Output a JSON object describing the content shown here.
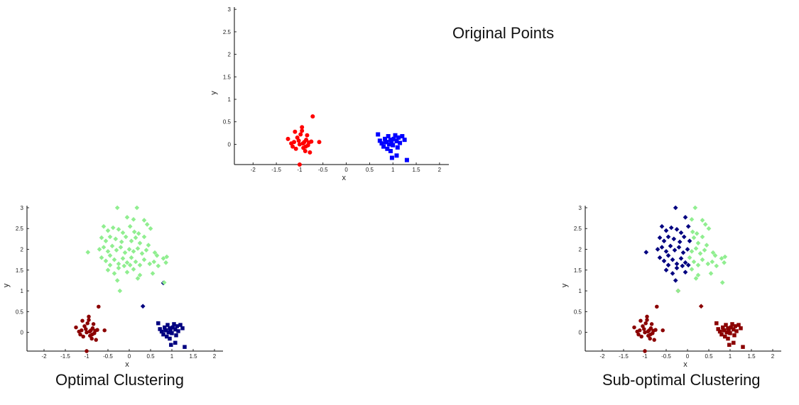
{
  "captions": {
    "top": "Original Points",
    "left": "Optimal Clustering",
    "right": "Sub-optimal Clustering"
  },
  "colors": {
    "red": "#ff0000",
    "blue": "#0000ff",
    "green": "#00ee00",
    "dark_red": "#8b0000",
    "navy": "#000080",
    "light_green": "#90ee90"
  },
  "chart_data": [
    {
      "type": "scatter",
      "title": "Original Points",
      "xlabel": "x",
      "ylabel": "y",
      "xlim": [
        -2.4,
        2.2
      ],
      "ylim": [
        -0.45,
        3.05
      ],
      "xticks": [
        "-2",
        "-1.5",
        "-1",
        "-0.5",
        "0",
        "0.5",
        "1",
        "1.5",
        "2"
      ],
      "yticks": [
        "0",
        "0.5",
        "1",
        "1.5",
        "2",
        "2.5",
        "3"
      ],
      "grid": false,
      "groups": [
        {
          "color": "red",
          "marker": "circle",
          "points": "A"
        },
        {
          "color": "blue",
          "marker": "square",
          "points": "B"
        },
        {
          "color": "green",
          "marker": "diamond",
          "points": "C"
        }
      ]
    },
    {
      "type": "scatter",
      "title": "Optimal Clustering",
      "xlabel": "x",
      "ylabel": "y",
      "xlim": [
        -2.4,
        2.2
      ],
      "ylim": [
        -0.45,
        3.05
      ],
      "xticks": [
        "-2",
        "-1.5",
        "-1",
        "-0.5",
        "0",
        "0.5",
        "1",
        "1.5",
        "2"
      ],
      "yticks": [
        "0",
        "0.5",
        "1",
        "1.5",
        "2",
        "2.5",
        "3"
      ],
      "grid": false,
      "groups": [
        {
          "color": "dark_red",
          "marker": "circle",
          "points": "A"
        },
        {
          "color": "navy",
          "marker": "square",
          "points": "B"
        },
        {
          "color": "navy",
          "marker": "diamond",
          "points": "C_outliers"
        },
        {
          "color": "light_green",
          "marker": "diamond",
          "points": "C_main"
        }
      ]
    },
    {
      "type": "scatter",
      "title": "Sub-optimal Clustering",
      "xlabel": "x",
      "ylabel": "y",
      "xlim": [
        -2.4,
        2.2
      ],
      "ylim": [
        -0.45,
        3.05
      ],
      "xticks": [
        "-2",
        "-1.5",
        "-1",
        "-0.5",
        "0",
        "0.5",
        "1",
        "1.5",
        "2"
      ],
      "yticks": [
        "0",
        "0.5",
        "1",
        "1.5",
        "2",
        "2.5",
        "3"
      ],
      "grid": false,
      "groups": [
        {
          "color": "dark_red",
          "marker": "circle",
          "points": "A"
        },
        {
          "color": "dark_red",
          "marker": "square",
          "points": "B"
        },
        {
          "color": "dark_red",
          "marker": "diamond",
          "points": "C_outliers"
        },
        {
          "color": "navy",
          "marker": "diamond",
          "points": "C_left"
        },
        {
          "color": "light_green",
          "marker": "diamond",
          "points": "C_right"
        }
      ]
    }
  ],
  "points": {
    "A": [
      [
        -1.25,
        0.12
      ],
      [
        -1.18,
        0.02
      ],
      [
        -1.15,
        -0.05
      ],
      [
        -1.12,
        0.05
      ],
      [
        -1.08,
        -0.1
      ],
      [
        -1.05,
        0.15
      ],
      [
        -1.02,
        0.08
      ],
      [
        -0.98,
        0.22
      ],
      [
        -0.95,
        0.3
      ],
      [
        -0.92,
        -0.08
      ],
      [
        -0.9,
        0.05
      ],
      [
        -0.88,
        -0.15
      ],
      [
        -0.86,
        0.1
      ],
      [
        -0.84,
        0.2
      ],
      [
        -0.82,
        -0.02
      ],
      [
        -0.8,
        0.04
      ],
      [
        -0.78,
        -0.18
      ],
      [
        -0.75,
        0.06
      ],
      [
        -1.1,
        0.28
      ],
      [
        -0.95,
        0.38
      ],
      [
        -1.0,
        0.0
      ],
      [
        -0.87,
        -0.05
      ],
      [
        -0.72,
        0.62
      ],
      [
        -0.58,
        0.05
      ],
      [
        -1.0,
        -0.45
      ],
      [
        -0.93,
        0.02
      ]
    ],
    "B": [
      [
        0.68,
        0.22
      ],
      [
        0.72,
        0.08
      ],
      [
        0.76,
        0.02
      ],
      [
        0.8,
        -0.05
      ],
      [
        0.83,
        0.12
      ],
      [
        0.86,
        0.05
      ],
      [
        0.88,
        -0.1
      ],
      [
        0.9,
        0.18
      ],
      [
        0.92,
        0.0
      ],
      [
        0.95,
        0.1
      ],
      [
        0.97,
        0.04
      ],
      [
        1.0,
        -0.02
      ],
      [
        1.02,
        0.12
      ],
      [
        1.05,
        0.2
      ],
      [
        1.08,
        0.07
      ],
      [
        1.1,
        -0.07
      ],
      [
        1.12,
        0.15
      ],
      [
        1.15,
        0.03
      ],
      [
        1.2,
        0.18
      ],
      [
        1.25,
        0.1
      ],
      [
        0.98,
        -0.3
      ],
      [
        1.08,
        -0.25
      ],
      [
        1.3,
        -0.35
      ],
      [
        0.85,
        0.05
      ],
      [
        0.95,
        -0.15
      ]
    ],
    "C_outliers": [
      [
        0.32,
        0.63
      ],
      [
        0.8,
        1.19
      ]
    ],
    "C_main": [
      [
        -0.28,
        3.0
      ],
      [
        0.18,
        3.0
      ],
      [
        -0.05,
        2.77
      ],
      [
        0.1,
        2.72
      ],
      [
        0.35,
        2.7
      ],
      [
        -0.6,
        2.55
      ],
      [
        -0.5,
        2.45
      ],
      [
        -0.38,
        2.52
      ],
      [
        -0.25,
        2.48
      ],
      [
        -0.15,
        2.4
      ],
      [
        0.02,
        2.55
      ],
      [
        0.12,
        2.42
      ],
      [
        0.22,
        2.38
      ],
      [
        0.42,
        2.6
      ],
      [
        0.5,
        2.5
      ],
      [
        -0.65,
        2.28
      ],
      [
        -0.55,
        2.2
      ],
      [
        -0.45,
        2.3
      ],
      [
        -0.32,
        2.25
      ],
      [
        -0.18,
        2.18
      ],
      [
        -0.08,
        2.3
      ],
      [
        0.05,
        2.2
      ],
      [
        0.15,
        2.28
      ],
      [
        0.25,
        2.15
      ],
      [
        0.35,
        2.3
      ],
      [
        0.45,
        2.1
      ],
      [
        -0.7,
        2.0
      ],
      [
        -0.6,
        2.05
      ],
      [
        -0.5,
        1.95
      ],
      [
        -0.4,
        2.08
      ],
      [
        -0.3,
        1.98
      ],
      [
        -0.2,
        2.05
      ],
      [
        -0.1,
        1.92
      ],
      [
        0.0,
        2.0
      ],
      [
        0.1,
        1.95
      ],
      [
        0.2,
        2.02
      ],
      [
        0.3,
        1.9
      ],
      [
        0.4,
        1.98
      ],
      [
        0.6,
        1.92
      ],
      [
        0.65,
        1.85
      ],
      [
        -0.97,
        1.93
      ],
      [
        -0.65,
        1.8
      ],
      [
        -0.55,
        1.72
      ],
      [
        -0.45,
        1.85
      ],
      [
        -0.35,
        1.75
      ],
      [
        -0.25,
        1.65
      ],
      [
        -0.15,
        1.78
      ],
      [
        -0.05,
        1.68
      ],
      [
        0.05,
        1.8
      ],
      [
        0.15,
        1.7
      ],
      [
        0.25,
        1.62
      ],
      [
        0.35,
        1.75
      ],
      [
        0.48,
        1.65
      ],
      [
        0.58,
        1.7
      ],
      [
        0.68,
        1.6
      ],
      [
        0.8,
        1.78
      ],
      [
        0.88,
        1.82
      ],
      [
        0.86,
        1.68
      ],
      [
        -0.5,
        1.5
      ],
      [
        -0.35,
        1.42
      ],
      [
        -0.25,
        1.55
      ],
      [
        -0.05,
        1.45
      ],
      [
        0.1,
        1.52
      ],
      [
        0.25,
        1.38
      ],
      [
        -0.28,
        1.25
      ],
      [
        0.2,
        1.3
      ],
      [
        0.55,
        1.42
      ],
      [
        0.82,
        1.2
      ],
      [
        -0.22,
        1.0
      ],
      [
        -0.45,
        1.62
      ],
      [
        -0.12,
        1.6
      ],
      [
        0.02,
        1.62
      ]
    ],
    "C_left": [
      [
        -0.28,
        3.0
      ],
      [
        -0.05,
        2.77
      ],
      [
        -0.6,
        2.55
      ],
      [
        -0.5,
        2.45
      ],
      [
        -0.38,
        2.52
      ],
      [
        -0.25,
        2.48
      ],
      [
        -0.15,
        2.4
      ],
      [
        0.02,
        2.55
      ],
      [
        -0.65,
        2.28
      ],
      [
        -0.55,
        2.2
      ],
      [
        -0.45,
        2.3
      ],
      [
        -0.32,
        2.25
      ],
      [
        -0.18,
        2.18
      ],
      [
        -0.08,
        2.3
      ],
      [
        0.05,
        2.2
      ],
      [
        -0.7,
        2.0
      ],
      [
        -0.6,
        2.05
      ],
      [
        -0.5,
        1.95
      ],
      [
        -0.4,
        2.08
      ],
      [
        -0.3,
        1.98
      ],
      [
        -0.2,
        2.05
      ],
      [
        -0.1,
        1.92
      ],
      [
        0.0,
        2.0
      ],
      [
        -0.97,
        1.93
      ],
      [
        -0.65,
        1.8
      ],
      [
        -0.55,
        1.72
      ],
      [
        -0.45,
        1.85
      ],
      [
        -0.35,
        1.75
      ],
      [
        -0.25,
        1.65
      ],
      [
        -0.15,
        1.78
      ],
      [
        -0.05,
        1.68
      ],
      [
        -0.5,
        1.5
      ],
      [
        -0.35,
        1.42
      ],
      [
        -0.25,
        1.55
      ],
      [
        -0.05,
        1.45
      ],
      [
        -0.28,
        1.25
      ],
      [
        -0.45,
        1.62
      ],
      [
        -0.12,
        1.6
      ],
      [
        0.02,
        1.62
      ]
    ],
    "C_right": [
      [
        0.18,
        3.0
      ],
      [
        0.1,
        2.72
      ],
      [
        0.35,
        2.7
      ],
      [
        0.12,
        2.42
      ],
      [
        0.22,
        2.38
      ],
      [
        0.42,
        2.6
      ],
      [
        0.5,
        2.5
      ],
      [
        0.15,
        2.28
      ],
      [
        0.25,
        2.15
      ],
      [
        0.35,
        2.3
      ],
      [
        0.45,
        2.1
      ],
      [
        0.1,
        1.95
      ],
      [
        0.2,
        2.02
      ],
      [
        0.3,
        1.9
      ],
      [
        0.4,
        1.98
      ],
      [
        0.6,
        1.92
      ],
      [
        0.65,
        1.85
      ],
      [
        0.05,
        1.8
      ],
      [
        0.15,
        1.7
      ],
      [
        0.25,
        1.62
      ],
      [
        0.35,
        1.75
      ],
      [
        0.48,
        1.65
      ],
      [
        0.58,
        1.7
      ],
      [
        0.68,
        1.6
      ],
      [
        0.8,
        1.78
      ],
      [
        0.88,
        1.82
      ],
      [
        0.86,
        1.68
      ],
      [
        0.1,
        1.52
      ],
      [
        0.25,
        1.38
      ],
      [
        0.2,
        1.3
      ],
      [
        0.55,
        1.42
      ],
      [
        0.82,
        1.2
      ],
      [
        -0.22,
        1.0
      ]
    ],
    "C_outliers_sub": [
      [
        0.32,
        0.63
      ],
      [
        -0.22,
        1.0
      ]
    ]
  }
}
